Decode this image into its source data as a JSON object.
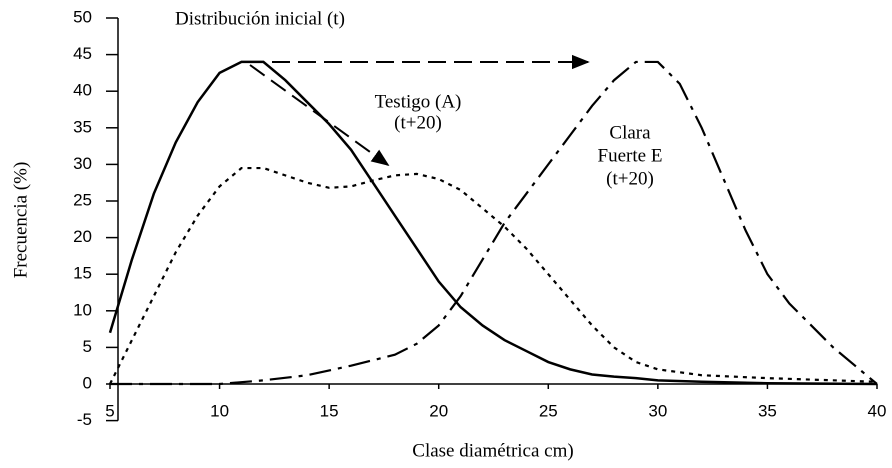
{
  "chart_data": {
    "type": "line",
    "xlabel": "Clase diamétrica cm)",
    "ylabel": "Frecuencia (%)",
    "annotations": [
      "Distribución inicial (t)",
      "Testigo (A)",
      "(t+20)",
      "Clara",
      "Fuerte  E",
      "(t+20)"
    ],
    "xlim": [
      5,
      40
    ],
    "xticks": [
      5,
      10,
      15,
      20,
      25,
      30,
      35,
      40
    ],
    "ylim": [
      -5,
      50
    ],
    "yticks": [
      -5,
      0,
      5,
      10,
      15,
      20,
      25,
      30,
      35,
      40,
      45,
      50
    ],
    "series": [
      {
        "name": "Distribución inicial (t)",
        "color": "#000000",
        "style": "solid",
        "x": [
          5,
          6,
          7,
          8,
          9,
          10,
          11,
          12,
          13,
          14,
          15,
          16,
          17,
          18,
          19,
          20,
          21,
          22,
          23,
          24,
          25,
          26,
          27,
          28,
          29,
          30,
          32,
          35,
          40
        ],
        "values": [
          7,
          17,
          26,
          33,
          38.5,
          42.5,
          44,
          44,
          41.5,
          38.5,
          35.5,
          32,
          27.5,
          23,
          18.5,
          14,
          10.5,
          8,
          6,
          4.5,
          3,
          2,
          1.3,
          1,
          0.8,
          0.5,
          0.3,
          0.1,
          0
        ]
      },
      {
        "name": "Testigo (A) (t+20)",
        "color": "#000000",
        "style": "dotted",
        "x": [
          5,
          6,
          7,
          8,
          9,
          10,
          11,
          12,
          13,
          14,
          15,
          16,
          17,
          18,
          19,
          20,
          21,
          22,
          23,
          24,
          25,
          26,
          27,
          28,
          29,
          30,
          32,
          35,
          40
        ],
        "values": [
          0,
          6,
          12,
          18,
          23,
          27,
          29.5,
          29.5,
          28.5,
          27.5,
          26.8,
          27,
          27.8,
          28.5,
          28.7,
          28,
          26.5,
          24,
          21.5,
          18.5,
          15,
          11.5,
          8,
          5,
          3,
          2,
          1.2,
          0.8,
          0.3
        ]
      },
      {
        "name": "Clara Fuerte E (t+20)",
        "color": "#000000",
        "style": "dashdot",
        "x": [
          5,
          10,
          12,
          14,
          16,
          18,
          19,
          20,
          21,
          22,
          23,
          24,
          25,
          26,
          27,
          28,
          29,
          30,
          31,
          32,
          33,
          34,
          35,
          36,
          37,
          38,
          39,
          40
        ],
        "values": [
          0,
          0,
          0.5,
          1.2,
          2.5,
          4,
          5.5,
          8,
          12,
          17,
          22,
          26,
          30,
          34,
          38,
          41.5,
          44,
          44,
          41,
          35,
          28,
          21,
          15,
          11,
          8,
          5,
          2.5,
          0
        ]
      }
    ]
  }
}
